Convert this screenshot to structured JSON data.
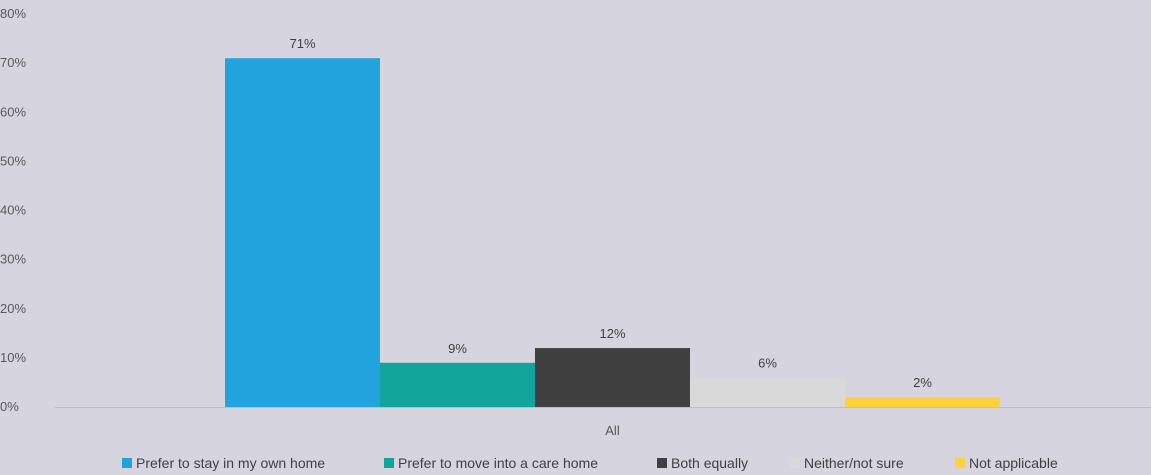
{
  "chart_data": {
    "type": "bar",
    "title": "",
    "xlabel": "",
    "ylabel": "",
    "categories": [
      "All"
    ],
    "series": [
      {
        "name": "Prefer to stay in my own home",
        "values": [
          71
        ],
        "label": "71%",
        "color": "#23a3dd"
      },
      {
        "name": "Prefer to move into a care home",
        "values": [
          9
        ],
        "label": "9%",
        "color": "#12a59c"
      },
      {
        "name": "Both equally",
        "values": [
          12
        ],
        "label": "12%",
        "color": "#404040"
      },
      {
        "name": "Neither/not sure",
        "values": [
          6
        ],
        "label": "6%",
        "color": "#d9d9d9"
      },
      {
        "name": "Not applicable",
        "values": [
          2
        ],
        "label": "2%",
        "color": "#fed23c"
      }
    ],
    "ylim": [
      0,
      80
    ],
    "yticks": [
      "0%",
      "10%",
      "20%",
      "30%",
      "40%",
      "50%",
      "60%",
      "70%",
      "80%"
    ],
    "grid": false,
    "legend_position": "bottom"
  }
}
